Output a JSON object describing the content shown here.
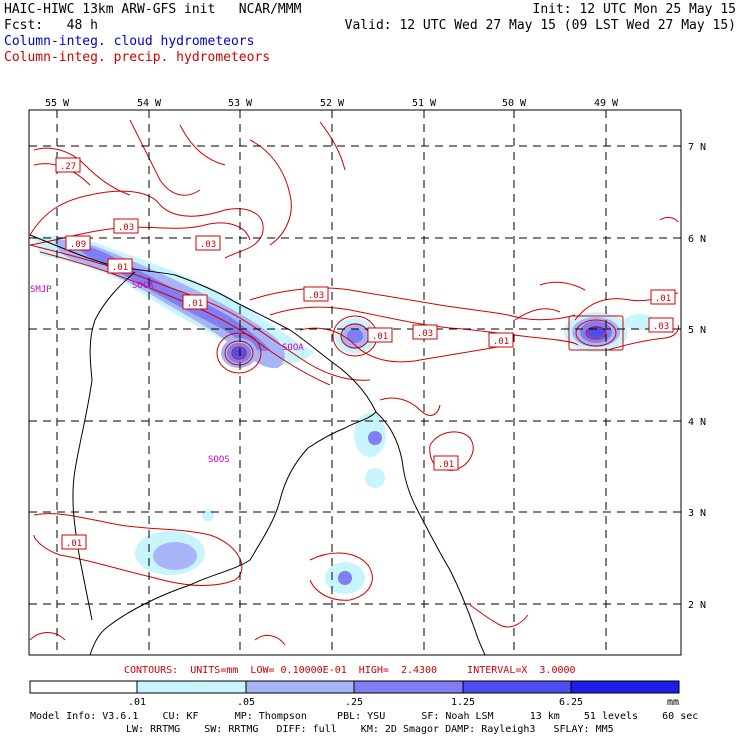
{
  "header": {
    "title_line": "HAIC-HIWC 13km ARW-GFS init   NCAR/MMM",
    "fcst_line": "Fcst:   48 h",
    "init_line": "Init: 12 UTC Mon 25 May 15",
    "valid_line": "Valid: 12 UTC Wed 27 May 15 (09 LST Wed 27 May 15)",
    "field1": "Column-integ. cloud hydrometeors",
    "field2": "Column-integ. precip. hydrometeors"
  },
  "colors": {
    "field1": "#0000cc",
    "field2": "#d40000",
    "contour": "#d40000",
    "station": "#cc00cc",
    "fill_levels": [
      "#ffffff",
      "#c8f4fc",
      "#a8b4f8",
      "#7f7ef4",
      "#4f4cf0",
      "#1e1ee8"
    ]
  },
  "map": {
    "lon_labels": [
      "55 W",
      "54 W",
      "53 W",
      "52 W",
      "51 W",
      "50 W",
      "49 W"
    ],
    "lat_labels": [
      "7 N",
      "6 N",
      "5 N",
      "4 N",
      "3 N",
      "2 N"
    ],
    "stations": [
      "SMJP",
      "SOCA",
      "SOOA",
      "SOOS"
    ],
    "contour_labels": [
      ".27",
      ".03",
      ".09",
      ".03",
      ".01",
      ".01",
      ".03",
      ".01",
      ".03",
      ".01",
      ".01",
      ".03",
      ".01",
      ".01"
    ]
  },
  "contours_text": "CONTOURS:  UNITS=mm  LOW= 0.10000E-01  HIGH=  2.4300     INTERVAL=X  3.0000",
  "colorbar": {
    "ticks": [
      ".01",
      ".05",
      ".25",
      "1.25",
      "6.25"
    ],
    "unit": "mm"
  },
  "model_info": {
    "line1": "Model Info: V3.6.1    CU: KF      MP: Thompson     PBL: YSU      SF: Noah LSM      13 km    51 levels    60 sec",
    "line2": "LW: RRTMG    SW: RRTMG   DIFF: full    KM: 2D Smagor DAMP: Rayleigh3   SFLAY: MM5"
  }
}
